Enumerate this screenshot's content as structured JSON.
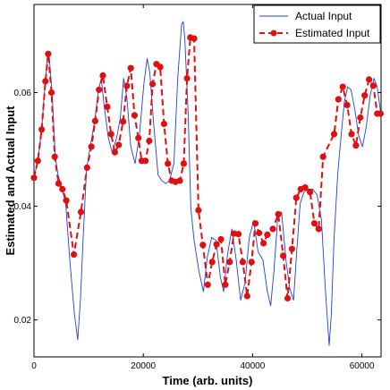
{
  "chart_data": {
    "type": "line",
    "xlabel": "Time (arb. units)",
    "ylabel": "Estimated and Actual Input",
    "xlim": [
      0,
      63500
    ],
    "ylim": [
      0.0135,
      0.0755
    ],
    "xticks": [
      0,
      20000,
      40000,
      60000
    ],
    "xtick_labels": [
      "0",
      "20000",
      "40000",
      "60000"
    ],
    "yticks": [
      0.02,
      0.04,
      0.06
    ],
    "ytick_labels": [
      "0.02",
      "0.04",
      "0.06"
    ],
    "grid": false,
    "legend_position": "top-right",
    "series": [
      {
        "name": "Actual Input",
        "color": "#1f3fd6",
        "style": "solid",
        "x": [
          0,
          700,
          1400,
          2100,
          2500,
          2800,
          3300,
          3900,
          4400,
          5000,
          5800,
          6600,
          7400,
          8000,
          8500,
          9000,
          9600,
          10300,
          11100,
          11800,
          12300,
          12800,
          13600,
          14300,
          15100,
          15800,
          16400,
          17000,
          17700,
          18500,
          19300,
          20100,
          20700,
          21200,
          21900,
          22700,
          23400,
          24100,
          24800,
          25600,
          26300,
          27000,
          27300,
          27600,
          28200,
          28700,
          29300,
          30200,
          31000,
          31700,
          32500,
          33300,
          34100,
          34700,
          35400,
          36200,
          37000,
          37800,
          38600,
          39400,
          40200,
          41000,
          41900,
          42700,
          43300,
          43900,
          44600,
          45300,
          46100,
          46800,
          47500,
          48100,
          48700,
          49400,
          50200,
          51000,
          51800,
          52600,
          53300,
          54000,
          54400,
          54900,
          55600,
          56200,
          56800,
          57400,
          58000,
          58700,
          59400,
          60100,
          60800,
          61500,
          62200,
          62800,
          63500
        ],
        "y": [
          0.045,
          0.048,
          0.0535,
          0.0625,
          0.0668,
          0.0663,
          0.06,
          0.0487,
          0.0455,
          0.0435,
          0.0405,
          0.03,
          0.021,
          0.0165,
          0.0235,
          0.0345,
          0.0465,
          0.0505,
          0.055,
          0.0605,
          0.0625,
          0.058,
          0.052,
          0.0495,
          0.052,
          0.0555,
          0.0625,
          0.059,
          0.0505,
          0.0475,
          0.0525,
          0.0615,
          0.066,
          0.0635,
          0.0545,
          0.0455,
          0.0445,
          0.044,
          0.0445,
          0.0475,
          0.0625,
          0.072,
          0.0725,
          0.0695,
          0.0565,
          0.0395,
          0.034,
          0.0285,
          0.025,
          0.031,
          0.0345,
          0.034,
          0.0275,
          0.025,
          0.0315,
          0.036,
          0.0305,
          0.0235,
          0.0265,
          0.0345,
          0.0375,
          0.032,
          0.0305,
          0.025,
          0.0225,
          0.0285,
          0.038,
          0.039,
          0.0305,
          0.0255,
          0.0235,
          0.0325,
          0.0405,
          0.0425,
          0.043,
          0.043,
          0.042,
          0.0375,
          0.0255,
          0.0155,
          0.021,
          0.0345,
          0.046,
          0.0525,
          0.0585,
          0.061,
          0.0605,
          0.057,
          0.0525,
          0.0505,
          0.054,
          0.0595,
          0.0625,
          0.061,
          0.056
        ]
      },
      {
        "name": "Estimated Input",
        "color": "#e01010",
        "style": "dashed",
        "markers": true,
        "x": [
          0,
          700,
          1400,
          2100,
          2600,
          3200,
          3800,
          4500,
          5200,
          5900,
          7300,
          8600,
          9700,
          10500,
          11200,
          11900,
          12600,
          13400,
          14100,
          14800,
          15500,
          16300,
          17000,
          17700,
          18400,
          19100,
          19700,
          20400,
          21100,
          21700,
          22400,
          23100,
          23800,
          24500,
          25200,
          25900,
          26700,
          27400,
          28000,
          28600,
          29300,
          30100,
          30900,
          31800,
          32600,
          33400,
          34200,
          35000,
          35800,
          36600,
          37400,
          38200,
          39000,
          39800,
          40500,
          41200,
          42000,
          42700,
          43700,
          44700,
          45600,
          46400,
          47200,
          48000,
          48800,
          49600,
          50500,
          51300,
          52100,
          52900,
          54900,
          55700,
          56500,
          57300,
          58100,
          58900,
          59700,
          60500,
          61300,
          62100,
          62800,
          63400
        ],
        "y": [
          0.045,
          0.048,
          0.0535,
          0.062,
          0.0668,
          0.06,
          0.0487,
          0.044,
          0.043,
          0.041,
          0.0315,
          0.039,
          0.0468,
          0.0505,
          0.055,
          0.0605,
          0.063,
          0.0575,
          0.0527,
          0.0495,
          0.0508,
          0.0549,
          0.0612,
          0.0643,
          0.056,
          0.052,
          0.048,
          0.048,
          0.0515,
          0.0615,
          0.065,
          0.0645,
          0.0545,
          0.0475,
          0.0445,
          0.0443,
          0.0445,
          0.0475,
          0.0625,
          0.0697,
          0.0695,
          0.0393,
          0.0332,
          0.0262,
          0.0302,
          0.0333,
          0.0342,
          0.0262,
          0.0302,
          0.0352,
          0.0351,
          0.0302,
          0.0242,
          0.0302,
          0.037,
          0.0353,
          0.0335,
          0.035,
          0.036,
          0.0386,
          0.0313,
          0.0238,
          0.0325,
          0.0415,
          0.043,
          0.0433,
          0.0425,
          0.037,
          0.036,
          0.0487,
          0.0527,
          0.0588,
          0.061,
          0.0578,
          0.0527,
          0.0507,
          0.0556,
          0.0595,
          0.0623,
          0.0612,
          0.0563,
          0.0563
        ]
      }
    ]
  }
}
